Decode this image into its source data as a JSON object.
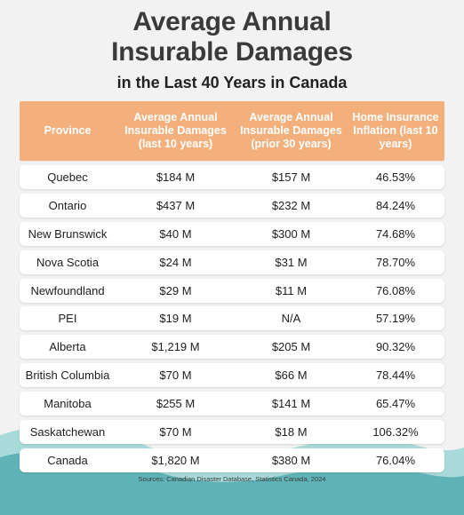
{
  "title": {
    "line1": "Average Annual",
    "line2": "Insurable Damages",
    "subtitle": "in the Last 40 Years in Canada"
  },
  "table": {
    "headers": [
      "Province",
      "Average Annual Insurable Damages (last 10 years)",
      "Average Annual Insurable Damages (prior 30 years)",
      "Home Insurance Inflation (last 10 years)"
    ],
    "rows": [
      [
        "Quebec",
        "$184 M",
        "$157 M",
        "46.53%"
      ],
      [
        "Ontario",
        "$437 M",
        "$232 M",
        "84.24%"
      ],
      [
        "New Brunswick",
        "$40 M",
        "$300 M",
        "74.68%"
      ],
      [
        "Nova Scotia",
        "$24 M",
        "$31 M",
        "78.70%"
      ],
      [
        "Newfoundland",
        "$29 M",
        "$11 M",
        "76.08%"
      ],
      [
        "PEI",
        "$19 M",
        "N/A",
        "57.19%"
      ],
      [
        "Alberta",
        "$1,219 M",
        "$205 M",
        "90.32%"
      ],
      [
        "British Columbia",
        "$70 M",
        "$66 M",
        "78.44%"
      ],
      [
        "Manitoba",
        "$255 M",
        "$141 M",
        "65.47%"
      ],
      [
        "Saskatchewan",
        "$70 M",
        "$18 M",
        "106.32%"
      ],
      [
        "Canada",
        "$1,820 M",
        "$380 M",
        "76.04%"
      ]
    ]
  },
  "source": "Sources: Canadian Disaster Database, Statistics Canada, 2024",
  "colors": {
    "header_bg": "#f3b07c",
    "wave_light": "#a9dada",
    "wave_dark": "#5fb3b6",
    "background": "#f2f2f2"
  }
}
